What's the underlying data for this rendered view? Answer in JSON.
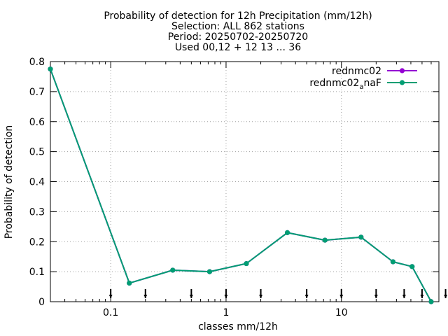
{
  "chart_data": {
    "type": "line",
    "title": [
      "Probability of detection  for 12h Precipitation (mm/12h)",
      "Selection: ALL    862 stations",
      "Period: 20250702-20250720",
      "Used 00,12 + 12 13 ... 36"
    ],
    "xlabel": "classes mm/12h",
    "ylabel": "Probability of detection",
    "xscale": "log",
    "xlim": [
      0.03,
      70
    ],
    "ylim": [
      0,
      0.8
    ],
    "xticks": [
      {
        "value": 0.1,
        "label": "0.1"
      },
      {
        "value": 1,
        "label": "1"
      },
      {
        "value": 10,
        "label": "10"
      }
    ],
    "yticks": [
      {
        "value": 0,
        "label": "0"
      },
      {
        "value": 0.1,
        "label": "0.1"
      },
      {
        "value": 0.2,
        "label": "0.2"
      },
      {
        "value": 0.3,
        "label": "0.3"
      },
      {
        "value": 0.4,
        "label": "0.4"
      },
      {
        "value": 0.5,
        "label": "0.5"
      },
      {
        "value": 0.6,
        "label": "0.6"
      },
      {
        "value": 0.7,
        "label": "0.7"
      },
      {
        "value": 0.8,
        "label": "0.8"
      }
    ],
    "grid": true,
    "legend_position": "top-right",
    "class_markers": [
      0.1,
      0.2,
      0.5,
      1,
      2,
      5,
      10,
      20,
      35,
      50,
      80
    ],
    "series": [
      {
        "name": "rednmc02",
        "color": "#9400d3",
        "x": [
          0.03,
          0.145,
          0.345,
          0.72,
          1.5,
          3.4,
          7.2,
          14.8,
          28,
          41,
          60
        ],
        "y": [
          0.775,
          0.062,
          0.105,
          0.1,
          0.127,
          0.23,
          0.205,
          0.215,
          0.133,
          0.117,
          0.0
        ]
      },
      {
        "name": "rednmc02_anaF",
        "name_base": "rednmc02",
        "name_sub": "a",
        "name_tail": "naF",
        "color": "#009e73",
        "x": [
          0.03,
          0.145,
          0.345,
          0.72,
          1.5,
          3.4,
          7.2,
          14.8,
          28,
          41,
          60
        ],
        "y": [
          0.775,
          0.062,
          0.105,
          0.1,
          0.127,
          0.23,
          0.205,
          0.215,
          0.133,
          0.117,
          0.0
        ]
      }
    ]
  }
}
